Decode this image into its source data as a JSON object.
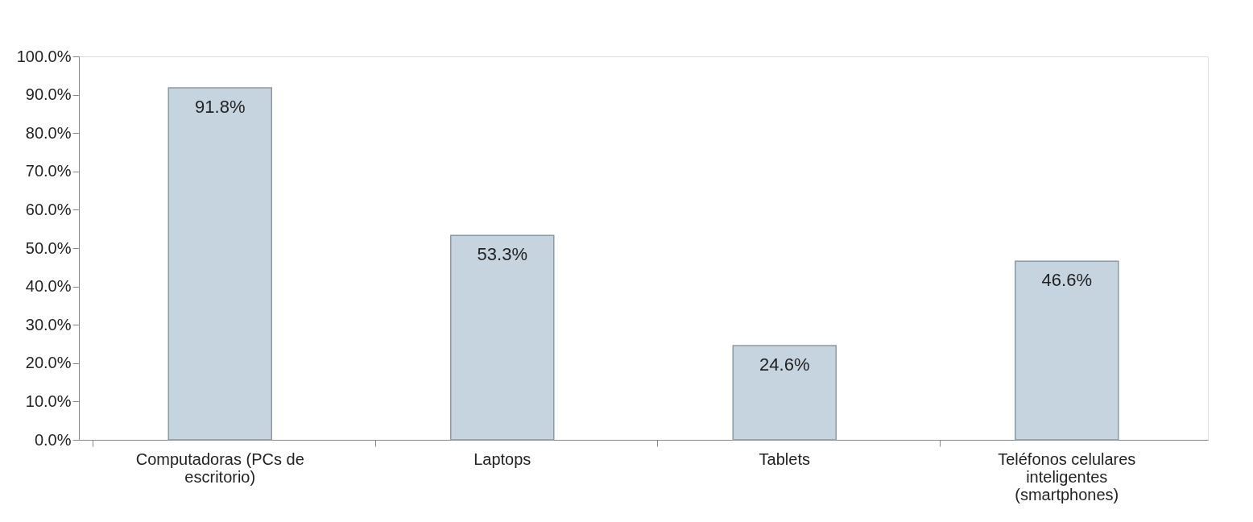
{
  "chart_data": {
    "type": "bar",
    "categories": [
      "Computadoras (PCs de escritorio)",
      "Laptops",
      "Tablets",
      "Teléfonos celulares inteligentes (smartphones)"
    ],
    "values": [
      91.8,
      53.3,
      24.6,
      46.6
    ],
    "value_labels": [
      "91.8%",
      "53.3%",
      "24.6%",
      "46.6%"
    ],
    "color": "#c6d4e0",
    "ylim": [
      0,
      100
    ],
    "yticks": [
      {
        "value": 0,
        "label": "0.0%"
      },
      {
        "value": 10,
        "label": "10.0%"
      },
      {
        "value": 20,
        "label": "20.0%"
      },
      {
        "value": 30,
        "label": "30.0%"
      },
      {
        "value": 40,
        "label": "40.0%"
      },
      {
        "value": 50,
        "label": "50.0%"
      },
      {
        "value": 60,
        "label": "60.0%"
      },
      {
        "value": 70,
        "label": "70.0%"
      },
      {
        "value": 80,
        "label": "80.0%"
      },
      {
        "value": 90,
        "label": "90.0%"
      },
      {
        "value": 100,
        "label": "100.0%"
      }
    ],
    "grid": false
  }
}
